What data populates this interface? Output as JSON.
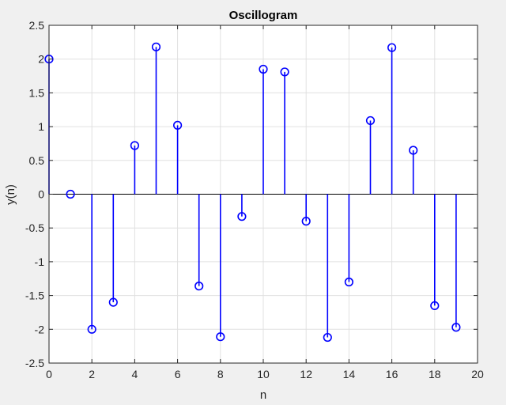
{
  "chart_data": {
    "type": "stem",
    "title": "Oscillogram",
    "xlabel": "n",
    "ylabel": "y(n)",
    "xlim": [
      0,
      20
    ],
    "ylim": [
      -2.5,
      2.5
    ],
    "xticks": [
      "0",
      "2",
      "4",
      "6",
      "8",
      "10",
      "12",
      "14",
      "16",
      "18",
      "20"
    ],
    "yticks": [
      "2.5",
      "2",
      "1.5",
      "1",
      "0.5",
      "0",
      "-0.5",
      "-1",
      "-1.5",
      "-2",
      "-2.5"
    ],
    "grid": true,
    "series": [
      {
        "color": "#0000ff",
        "x": [
          0,
          1,
          2,
          3,
          4,
          5,
          6,
          7,
          8,
          9,
          10,
          11,
          12,
          13,
          14,
          15,
          16,
          17,
          18,
          19
        ],
        "y": [
          2.0,
          0.0,
          -2.0,
          -1.6,
          0.72,
          2.18,
          1.02,
          -1.36,
          -2.11,
          -0.33,
          1.85,
          1.81,
          -0.4,
          -2.12,
          -1.3,
          1.09,
          2.17,
          0.65,
          -1.65,
          -1.97
        ]
      }
    ]
  },
  "colors": {
    "background": "#f0f0f0",
    "axes_background": "#ffffff",
    "grid": "#e0e0e0",
    "axis": "#262626",
    "stem": "#0000ff"
  }
}
